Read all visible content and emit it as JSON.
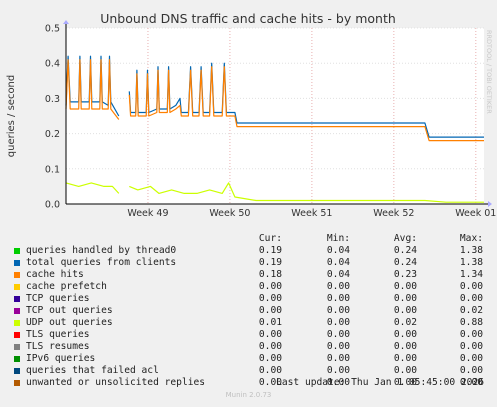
{
  "chart_data": {
    "type": "line",
    "title": "Unbound DNS traffic and cache hits - by month",
    "ylabel": "queries / second",
    "ylim": [
      0,
      0.5
    ],
    "yticks": [
      "0.0",
      "0.1",
      "0.2",
      "0.3",
      "0.4",
      "0.5"
    ],
    "xticks": [
      "Week 49",
      "Week 50",
      "Week 51",
      "Week 52",
      "Week 01"
    ],
    "xlim_weeks": [
      48.0,
      53.1
    ],
    "grid": true,
    "watermark": "RRDTOOL / TOBI OETIKER",
    "series": [
      {
        "name": "total queries from clients",
        "color": "#0066b3",
        "segments": [
          [
            [
              48.0,
              0.28
            ],
            [
              48.05,
              0.42
            ],
            [
              48.1,
              0.29
            ],
            [
              48.3,
              0.29
            ],
            [
              48.33,
              0.42
            ],
            [
              48.36,
              0.29
            ],
            [
              48.55,
              0.29
            ],
            [
              48.58,
              0.42
            ],
            [
              48.61,
              0.29
            ],
            [
              48.8,
              0.29
            ],
            [
              48.83,
              0.42
            ],
            [
              48.86,
              0.29
            ],
            [
              49.0,
              0.28
            ],
            [
              49.03,
              0.42
            ],
            [
              49.06,
              0.29
            ],
            [
              49.25,
              0.25
            ]
          ],
          [
            [
              49.5,
              0.32
            ],
            [
              49.53,
              0.26
            ],
            [
              49.65,
              0.26
            ],
            [
              49.68,
              0.38
            ],
            [
              49.71,
              0.26
            ],
            [
              49.9,
              0.26
            ],
            [
              49.93,
              0.38
            ],
            [
              49.96,
              0.26
            ],
            [
              50.15,
              0.27
            ],
            [
              50.18,
              0.39
            ],
            [
              50.21,
              0.27
            ],
            [
              50.4,
              0.27
            ],
            [
              50.43,
              0.39
            ],
            [
              50.46,
              0.27
            ],
            [
              50.6,
              0.28
            ],
            [
              50.7,
              0.3
            ],
            [
              50.73,
              0.26
            ],
            [
              50.9,
              0.26
            ],
            [
              50.95,
              0.39
            ],
            [
              51.0,
              0.26
            ],
            [
              51.15,
              0.26
            ],
            [
              51.2,
              0.39
            ],
            [
              51.25,
              0.26
            ],
            [
              51.4,
              0.26
            ],
            [
              51.45,
              0.4
            ],
            [
              51.5,
              0.26
            ],
            [
              51.7,
              0.26
            ],
            [
              51.75,
              0.4
            ],
            [
              51.8,
              0.26
            ],
            [
              52.0,
              0.26
            ],
            [
              52.05,
              0.23
            ],
            [
              52.5,
              0.23
            ],
            [
              53.0,
              0.23
            ],
            [
              54.0,
              0.23
            ],
            [
              55.0,
              0.23
            ],
            [
              56.0,
              0.23
            ],
            [
              56.5,
              0.23
            ],
            [
              56.6,
              0.19
            ],
            [
              57.0,
              0.19
            ],
            [
              57.5,
              0.19
            ],
            [
              57.9,
              0.19
            ]
          ]
        ]
      },
      {
        "name": "cache hits",
        "color": "#ff8000",
        "segments": [
          [
            [
              48.0,
              0.27
            ],
            [
              48.05,
              0.41
            ],
            [
              48.1,
              0.27
            ],
            [
              48.3,
              0.27
            ],
            [
              48.33,
              0.41
            ],
            [
              48.36,
              0.27
            ],
            [
              48.55,
              0.27
            ],
            [
              48.58,
              0.41
            ],
            [
              48.61,
              0.27
            ],
            [
              48.8,
              0.27
            ],
            [
              48.83,
              0.41
            ],
            [
              48.86,
              0.27
            ],
            [
              49.0,
              0.27
            ],
            [
              49.03,
              0.41
            ],
            [
              49.06,
              0.27
            ],
            [
              49.25,
              0.24
            ]
          ],
          [
            [
              49.5,
              0.31
            ],
            [
              49.53,
              0.25
            ],
            [
              49.65,
              0.25
            ],
            [
              49.68,
              0.37
            ],
            [
              49.71,
              0.25
            ],
            [
              49.9,
              0.25
            ],
            [
              49.93,
              0.37
            ],
            [
              49.96,
              0.25
            ],
            [
              50.15,
              0.26
            ],
            [
              50.18,
              0.38
            ],
            [
              50.21,
              0.26
            ],
            [
              50.4,
              0.26
            ],
            [
              50.43,
              0.38
            ],
            [
              50.46,
              0.26
            ],
            [
              50.6,
              0.27
            ],
            [
              50.7,
              0.28
            ],
            [
              50.73,
              0.25
            ],
            [
              50.9,
              0.25
            ],
            [
              50.95,
              0.38
            ],
            [
              51.0,
              0.25
            ],
            [
              51.15,
              0.25
            ],
            [
              51.2,
              0.38
            ],
            [
              51.25,
              0.25
            ],
            [
              51.4,
              0.25
            ],
            [
              51.45,
              0.39
            ],
            [
              51.5,
              0.25
            ],
            [
              51.7,
              0.25
            ],
            [
              51.75,
              0.39
            ],
            [
              51.8,
              0.25
            ],
            [
              52.0,
              0.25
            ],
            [
              52.05,
              0.22
            ],
            [
              52.5,
              0.22
            ],
            [
              53.0,
              0.22
            ],
            [
              54.0,
              0.22
            ],
            [
              55.0,
              0.22
            ],
            [
              56.0,
              0.22
            ],
            [
              56.5,
              0.22
            ],
            [
              56.6,
              0.18
            ],
            [
              57.0,
              0.18
            ],
            [
              57.5,
              0.18
            ],
            [
              57.9,
              0.18
            ]
          ]
        ]
      },
      {
        "name": "UDP out queries",
        "color": "#ccff00",
        "segments": [
          [
            [
              48.0,
              0.06
            ],
            [
              48.3,
              0.05
            ],
            [
              48.6,
              0.06
            ],
            [
              48.9,
              0.05
            ],
            [
              49.1,
              0.05
            ],
            [
              49.25,
              0.03
            ]
          ],
          [
            [
              49.5,
              0.05
            ],
            [
              49.7,
              0.04
            ],
            [
              50.0,
              0.05
            ],
            [
              50.2,
              0.03
            ],
            [
              50.5,
              0.04
            ],
            [
              50.8,
              0.03
            ],
            [
              51.1,
              0.03
            ],
            [
              51.4,
              0.04
            ],
            [
              51.7,
              0.03
            ],
            [
              51.85,
              0.06
            ],
            [
              52.0,
              0.02
            ],
            [
              52.5,
              0.01
            ],
            [
              53.0,
              0.01
            ],
            [
              54.0,
              0.01
            ],
            [
              55.0,
              0.01
            ],
            [
              56.0,
              0.01
            ],
            [
              56.5,
              0.01
            ],
            [
              57.0,
              0.005
            ],
            [
              57.9,
              0.005
            ]
          ]
        ]
      }
    ]
  },
  "legend": {
    "headers": [
      "Cur:",
      "Min:",
      "Avg:",
      "Max:"
    ],
    "rows": [
      {
        "color": "#00cc00",
        "label": "queries handled by thread0",
        "cur": "0.19",
        "min": "0.04",
        "avg": "0.24",
        "max": "1.38"
      },
      {
        "color": "#0066b3",
        "label": "total queries from clients",
        "cur": "0.19",
        "min": "0.04",
        "avg": "0.24",
        "max": "1.38"
      },
      {
        "color": "#ff8000",
        "label": "cache hits",
        "cur": "0.18",
        "min": "0.04",
        "avg": "0.23",
        "max": "1.34"
      },
      {
        "color": "#ffcc00",
        "label": "cache prefetch",
        "cur": "0.00",
        "min": "0.00",
        "avg": "0.00",
        "max": "0.00"
      },
      {
        "color": "#330099",
        "label": "TCP queries",
        "cur": "0.00",
        "min": "0.00",
        "avg": "0.00",
        "max": "0.00"
      },
      {
        "color": "#990099",
        "label": "TCP out queries",
        "cur": "0.00",
        "min": "0.00",
        "avg": "0.00",
        "max": "0.02"
      },
      {
        "color": "#ccff00",
        "label": "UDP out queries",
        "cur": "0.01",
        "min": "0.00",
        "avg": "0.02",
        "max": "0.88"
      },
      {
        "color": "#ff0000",
        "label": "TLS queries",
        "cur": "0.00",
        "min": "0.00",
        "avg": "0.00",
        "max": "0.00"
      },
      {
        "color": "#808080",
        "label": "TLS resumes",
        "cur": "0.00",
        "min": "0.00",
        "avg": "0.00",
        "max": "0.00"
      },
      {
        "color": "#008f00",
        "label": "IPv6 queries",
        "cur": "0.00",
        "min": "0.00",
        "avg": "0.00",
        "max": "0.00"
      },
      {
        "color": "#00487d",
        "label": "queries that failed acl",
        "cur": "0.00",
        "min": "0.00",
        "avg": "0.00",
        "max": "0.00"
      },
      {
        "color": "#b35a00",
        "label": "unwanted or unsolicited replies",
        "cur": "0.00",
        "min": "0.00",
        "avg": "0.00",
        "max": "0.00"
      }
    ]
  },
  "footer": {
    "last_update": "Last update: Thu Jan  1 05:45:00 2026",
    "generator": "Munin 2.0.73"
  }
}
